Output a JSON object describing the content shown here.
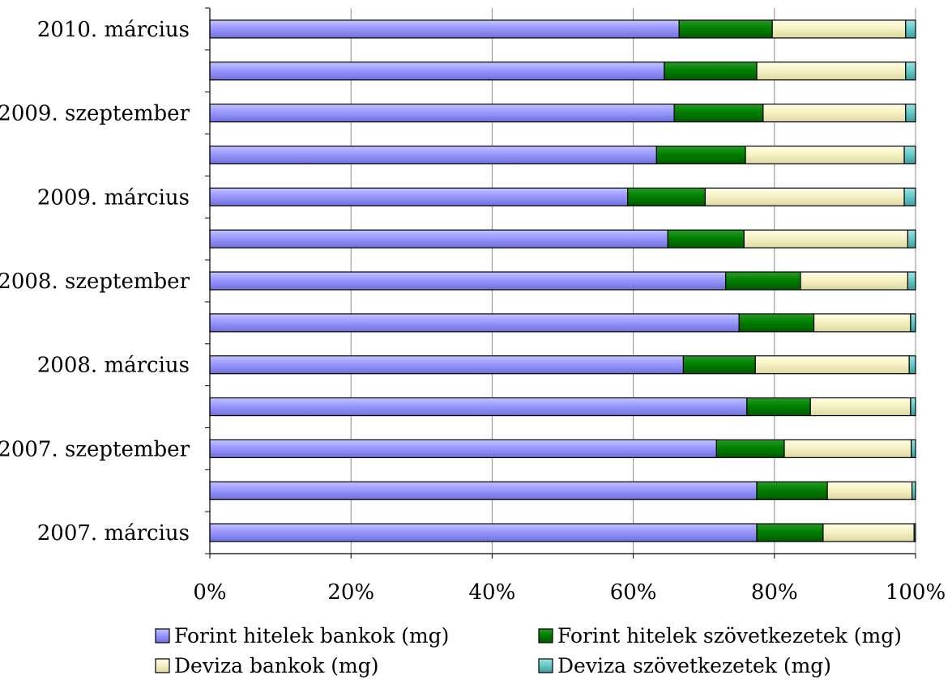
{
  "chart_data": {
    "type": "bar",
    "orientation": "horizontal",
    "stacked": "percent",
    "categories": [
      "2007. március",
      "",
      "2007. szeptember",
      "",
      "2008. március",
      "",
      "2008. szeptember",
      "",
      "2009. március",
      "",
      "2009. szeptember",
      "",
      "2010. március"
    ],
    "series": [
      {
        "name": "Forint hitelek bankok (mg)",
        "color": "#9999ff",
        "values": [
          77.5,
          77.5,
          71.8,
          76.1,
          67.1,
          75.0,
          73.1,
          64.9,
          59.2,
          63.3,
          65.8,
          64.4,
          66.5
        ]
      },
      {
        "name": "Forint hitelek szövetkezetek (mg)",
        "color": "#008000",
        "values": [
          9.4,
          10.0,
          9.6,
          9.0,
          10.2,
          10.6,
          10.6,
          10.8,
          11.0,
          12.6,
          12.6,
          13.1,
          13.2
        ]
      },
      {
        "name": "Deviza bankok (mg)",
        "color": "#ffffcc",
        "values": [
          12.9,
          12.0,
          18.0,
          14.2,
          21.8,
          13.7,
          15.2,
          23.2,
          28.2,
          22.5,
          20.2,
          21.1,
          18.9
        ]
      },
      {
        "name": "Deviza szövetkezetek (mg)",
        "color": "#66cccc",
        "values": [
          0.2,
          0.5,
          0.6,
          0.7,
          0.9,
          0.7,
          1.1,
          1.1,
          1.6,
          1.6,
          1.4,
          1.4,
          1.4
        ]
      }
    ],
    "xlim": [
      0,
      100
    ],
    "x_ticks": [
      "0%",
      "20%",
      "40%",
      "60%",
      "80%",
      "100%"
    ],
    "grid": "vertical",
    "legend_position": "bottom"
  }
}
